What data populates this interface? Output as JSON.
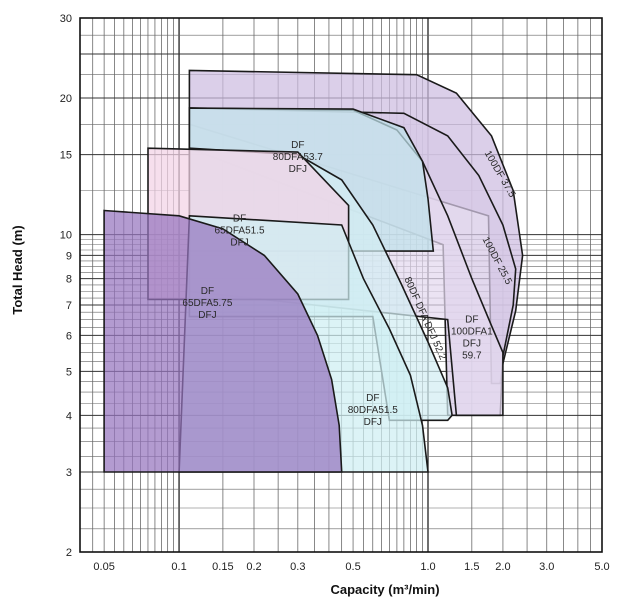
{
  "chart_data": {
    "type": "area",
    "xlabel": "Capacity (m³/min)",
    "ylabel": "Total Head (m)",
    "x_scale": "log",
    "y_scale": "log",
    "xlim": [
      0.04,
      5.0
    ],
    "ylim": [
      2,
      30
    ],
    "grid": true,
    "x_ticks": [
      {
        "value": 0.05,
        "label": "0.05"
      },
      {
        "value": 0.1,
        "label": "0.1"
      },
      {
        "value": 0.15,
        "label": "0.15"
      },
      {
        "value": 0.2,
        "label": "0.2"
      },
      {
        "value": 0.3,
        "label": "0.3"
      },
      {
        "value": 0.5,
        "label": "0.5"
      },
      {
        "value": 1.0,
        "label": "1.0"
      },
      {
        "value": 1.5,
        "label": "1.5"
      },
      {
        "value": 2.0,
        "label": "2.0"
      },
      {
        "value": 3.0,
        "label": "3.0"
      },
      {
        "value": 5.0,
        "label": "5.0"
      }
    ],
    "y_ticks": [
      {
        "value": 2,
        "label": "2"
      },
      {
        "value": 3,
        "label": "3"
      },
      {
        "value": 4,
        "label": "4"
      },
      {
        "value": 5,
        "label": "5"
      },
      {
        "value": 6,
        "label": "6"
      },
      {
        "value": 7,
        "label": "7"
      },
      {
        "value": 8,
        "label": "8"
      },
      {
        "value": 9,
        "label": "9"
      },
      {
        "value": 10,
        "label": "10"
      },
      {
        "value": 15,
        "label": "15"
      },
      {
        "value": 20,
        "label": "20"
      },
      {
        "value": 30,
        "label": "30"
      }
    ],
    "regions": [
      {
        "label": "DF 100DF 37.5",
        "color": "#cdbde0",
        "points": [
          [
            0.11,
            23
          ],
          [
            0.9,
            22.5
          ],
          [
            1.3,
            20.5
          ],
          [
            1.8,
            16.5
          ],
          [
            2.2,
            12.5
          ],
          [
            2.4,
            9.0
          ],
          [
            2.25,
            6.8
          ],
          [
            2.0,
            5.2
          ],
          [
            1.95,
            4.7
          ],
          [
            1.8,
            4.7
          ],
          [
            1.75,
            11
          ],
          [
            0.11,
            17.5
          ]
        ]
      },
      {
        "label": "100DF 25.5",
        "color": "#d7c9e6",
        "points": [
          [
            0.11,
            19
          ],
          [
            0.8,
            18.5
          ],
          [
            1.2,
            16.5
          ],
          [
            1.6,
            13.5
          ],
          [
            2.0,
            10.5
          ],
          [
            2.25,
            8.4
          ],
          [
            2.2,
            7.0
          ],
          [
            2.0,
            5.4
          ],
          [
            1.95,
            4.0
          ],
          [
            1.2,
            4.0
          ],
          [
            1.15,
            9.5
          ],
          [
            0.11,
            15.5
          ]
        ]
      },
      {
        "label": "DF 100DFA1 DFJ 59.7",
        "color": "#e3d8ef",
        "points": [
          [
            0.11,
            19
          ],
          [
            0.5,
            18.8
          ],
          [
            0.75,
            17
          ],
          [
            0.95,
            14.5
          ],
          [
            1.2,
            11
          ],
          [
            1.5,
            8
          ],
          [
            1.8,
            6.3
          ],
          [
            2.0,
            5.5
          ],
          [
            2.0,
            4.0
          ],
          [
            1.3,
            4.0
          ],
          [
            1.2,
            6.5
          ],
          [
            0.11,
            7.5
          ]
        ]
      },
      {
        "label": "DF 80DFA53.7 DFJ",
        "color": "#bfe2ea",
        "points": [
          [
            0.11,
            19
          ],
          [
            0.5,
            18.9
          ],
          [
            0.8,
            17.2
          ],
          [
            0.95,
            14.5
          ],
          [
            1.0,
            12
          ],
          [
            1.05,
            9.2
          ],
          [
            0.6,
            9.2
          ],
          [
            0.11,
            9.2
          ]
        ]
      },
      {
        "label": "80DF DFA DFJ 52.2",
        "color": "#d2edf2",
        "points": [
          [
            0.11,
            15.5
          ],
          [
            0.3,
            15.0
          ],
          [
            0.45,
            13.2
          ],
          [
            0.6,
            10.5
          ],
          [
            0.78,
            7.8
          ],
          [
            1.0,
            5.8
          ],
          [
            1.2,
            4.6
          ],
          [
            1.25,
            4.0
          ],
          [
            1.2,
            3.9
          ],
          [
            0.7,
            3.9
          ],
          [
            0.6,
            6.6
          ],
          [
            0.11,
            6.6
          ]
        ]
      },
      {
        "label": "DF 65DFA51.5 DFJ",
        "color": "#f2d3e6",
        "points": [
          [
            0.075,
            15.5
          ],
          [
            0.3,
            15.2
          ],
          [
            0.48,
            11.6
          ],
          [
            0.48,
            7.2
          ],
          [
            0.3,
            7.2
          ],
          [
            0.075,
            7.2
          ]
        ]
      },
      {
        "label": "DF 80DFA51.5 DFJ",
        "color": "#cfeef3",
        "points": [
          [
            0.11,
            11
          ],
          [
            0.45,
            10.5
          ],
          [
            0.55,
            8.0
          ],
          [
            0.7,
            6.2
          ],
          [
            0.85,
            4.9
          ],
          [
            0.95,
            3.8
          ],
          [
            1.0,
            3.0
          ],
          [
            0.1,
            3.0
          ]
        ]
      },
      {
        "label": "DF 65DFA5.75 DFJ",
        "color": "#9575be",
        "points": [
          [
            0.05,
            11.3
          ],
          [
            0.1,
            11.0
          ],
          [
            0.15,
            10.3
          ],
          [
            0.22,
            9.0
          ],
          [
            0.3,
            7.4
          ],
          [
            0.36,
            6.0
          ],
          [
            0.41,
            4.8
          ],
          [
            0.44,
            3.8
          ],
          [
            0.45,
            3.0
          ],
          [
            0.05,
            3.0
          ]
        ]
      }
    ],
    "labels": [
      {
        "lines": [
          "DF",
          "80DFA53.7",
          "DFJ"
        ],
        "x": 0.3,
        "y": 15.5
      },
      {
        "lines": [
          "DF",
          "65DFA51.5",
          "DFJ"
        ],
        "x": 0.175,
        "y": 10.7
      },
      {
        "lines": [
          "DF",
          "65DFA5.75",
          "DFJ"
        ],
        "x": 0.13,
        "y": 7.4
      },
      {
        "lines": [
          "DF",
          "80DFA51.5",
          "DFJ"
        ],
        "x": 0.6,
        "y": 4.3
      },
      {
        "lines": [
          "DF",
          "100DFA1",
          "DFJ",
          "59.7"
        ],
        "x": 1.5,
        "y": 6.4
      },
      {
        "lines": [
          "80DF DFA DFJ 52.2"
        ],
        "x": 0.95,
        "y": 6.5,
        "rotate": 66
      },
      {
        "lines": [
          "100DF 37.5"
        ],
        "x": 1.9,
        "y": 13.5,
        "rotate": 60
      },
      {
        "lines": [
          "100DF 25.5"
        ],
        "x": 1.85,
        "y": 8.7,
        "rotate": 62
      }
    ]
  }
}
